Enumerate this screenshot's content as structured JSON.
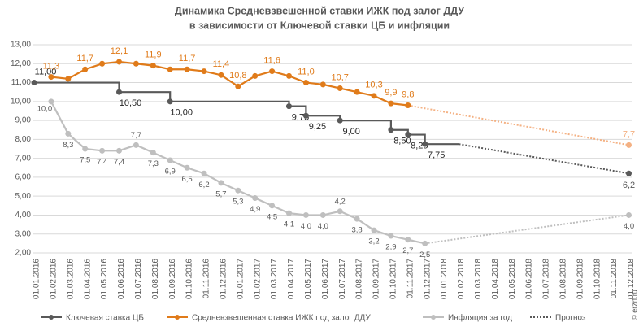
{
  "chart_data": {
    "type": "line",
    "title": [
      "Динамика Средневзвешенной ставки ИЖК под залог ДДУ",
      "в зависимости от Ключевой ставки ЦБ и инфляции"
    ],
    "categories": [
      "01.01.2016",
      "01.02.2016",
      "01.03.2016",
      "01.04.2016",
      "01.05.2016",
      "01.06.2016",
      "01.07.2016",
      "01.08.2016",
      "01.09.2016",
      "01.10.2016",
      "01.11.2016",
      "01.12.2016",
      "01.01.2017",
      "01.02.2017",
      "01.03.2017",
      "01.04.2017",
      "01.05.2017",
      "01.06.2017",
      "01.07.2017",
      "01.08.2017",
      "01.09.2017",
      "01.10.2017",
      "01.11.2017",
      "01.12.2017",
      "01.01.2018",
      "01.02.2018",
      "01.03.2018",
      "01.04.2018",
      "01.05.2018",
      "01.06.2018",
      "01.07.2018",
      "01.08.2018",
      "01.09.2018",
      "01.10.2018",
      "01.11.2018",
      "01.12.2018"
    ],
    "ylim": [
      2,
      13
    ],
    "yticks": [
      {
        "value": 2,
        "label": "2,00"
      },
      {
        "value": 3,
        "label": "3,00"
      },
      {
        "value": 4,
        "label": "4,00"
      },
      {
        "value": 5,
        "label": "5,00"
      },
      {
        "value": 6,
        "label": "6,00"
      },
      {
        "value": 7,
        "label": "7,00"
      },
      {
        "value": 8,
        "label": "8,00"
      },
      {
        "value": 9,
        "label": "9,00"
      },
      {
        "value": 10,
        "label": "10,00"
      },
      {
        "value": 11,
        "label": "11,00"
      },
      {
        "value": 12,
        "label": "12,00"
      },
      {
        "value": 13,
        "label": "13,00"
      }
    ],
    "grid": true,
    "series": [
      {
        "name": "Ключевая ставка ЦБ",
        "color": "#595959",
        "forecast_color": "#595959",
        "step": true,
        "values": [
          11,
          11,
          11,
          11,
          11,
          10.5,
          10.5,
          10.5,
          10,
          10,
          10,
          10,
          10,
          10,
          10,
          9.75,
          9.25,
          9.25,
          9,
          9,
          9,
          8.5,
          8.25,
          7.75,
          7.75,
          7.75,
          null,
          null,
          null,
          null,
          null,
          null,
          null,
          null,
          null,
          6.2
        ],
        "value_labels": [
          "11,00",
          null,
          null,
          null,
          null,
          "10,50",
          null,
          null,
          "10,00",
          null,
          null,
          null,
          null,
          null,
          null,
          "9,75",
          "9,25",
          null,
          "9,00",
          null,
          null,
          "8,50",
          "8,25",
          "7,75",
          null,
          null,
          null,
          null,
          null,
          null,
          null,
          null,
          null,
          null,
          null,
          "6,2"
        ]
      },
      {
        "name": "Средневзвешенная ставка ИЖК под залог ДДУ",
        "color": "#e07b1a",
        "forecast_color": "#f4b183",
        "values": [
          null,
          11.3,
          11.2,
          11.7,
          12.0,
          12.1,
          12.0,
          11.9,
          11.7,
          11.7,
          11.6,
          11.4,
          10.8,
          11.35,
          11.6,
          11.35,
          11.0,
          10.9,
          10.7,
          10.5,
          10.3,
          9.9,
          9.8,
          null,
          null,
          null,
          null,
          null,
          null,
          null,
          null,
          null,
          null,
          null,
          null,
          7.7
        ],
        "value_labels": [
          null,
          "11,3",
          null,
          "11,7",
          null,
          "12,1",
          null,
          "11,9",
          null,
          "11,7",
          null,
          "11,4",
          "10,8",
          null,
          "11,6",
          null,
          "11,0",
          null,
          "10,7",
          null,
          "10,3",
          "9,9",
          "9,8",
          null,
          null,
          null,
          null,
          null,
          null,
          null,
          null,
          null,
          null,
          null,
          null,
          "7,7"
        ]
      },
      {
        "name": "Инфляция за год",
        "color": "#bfbfbf",
        "forecast_color": "#bfbfbf",
        "values": [
          null,
          10.0,
          8.3,
          7.5,
          7.4,
          7.4,
          7.7,
          7.3,
          6.9,
          6.5,
          6.2,
          5.7,
          5.3,
          4.9,
          4.5,
          4.1,
          4.0,
          4.0,
          4.2,
          3.8,
          3.2,
          2.9,
          2.7,
          2.5,
          null,
          null,
          null,
          null,
          null,
          null,
          null,
          null,
          null,
          null,
          null,
          4.0
        ],
        "value_labels": [
          null,
          "10,0",
          "8,3",
          "7,5",
          "7,4",
          "7,4",
          "7,7",
          "7,3",
          "6,9",
          "6,5",
          "6,2",
          "5,7",
          "5,3",
          "4,9",
          "4,5",
          "4,1",
          "4,0",
          "4,0",
          "4,2",
          "3,8",
          "3,2",
          "2,9",
          "2,7",
          "2,5",
          null,
          null,
          null,
          null,
          null,
          null,
          null,
          null,
          null,
          null,
          null,
          "4,0"
        ]
      }
    ],
    "forecast_legend": "Прогноз",
    "source": "© erzrf.ru"
  }
}
